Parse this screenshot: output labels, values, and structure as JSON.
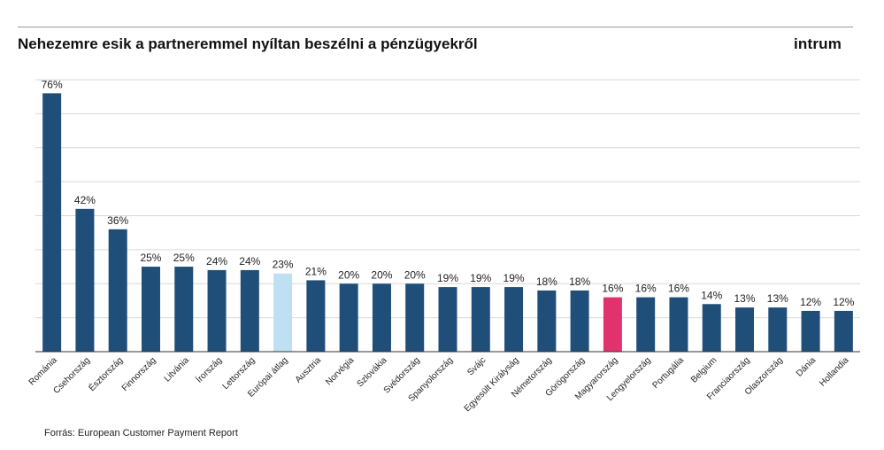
{
  "title": "Nehezemre esik a partneremmel nyíltan beszélni a pénzügyekről",
  "brand": "intrum",
  "source": "Forrás: European Customer Payment Report",
  "colors": {
    "bar": "#1f4e79",
    "average": "#bfe0f2",
    "highlight": "#e0336e",
    "grid": "#d9d9d9",
    "axis": "#333333"
  },
  "chart_data": {
    "type": "bar",
    "categories": [
      "Románia",
      "Csehország",
      "Észtország",
      "Finnország",
      "Litvánia",
      "Írország",
      "Lettország",
      "Európai átlag",
      "Ausztria",
      "Norvégia",
      "Szlovákia",
      "Svédország",
      "Spanyolország",
      "Svájc",
      "Egyesült Királyság",
      "Németország",
      "Görögország",
      "Magyarország",
      "Lengyelország",
      "Portugália",
      "Belgium",
      "Franciaország",
      "Olaszország",
      "Dánia",
      "Hollandia"
    ],
    "values": [
      76,
      42,
      36,
      25,
      25,
      24,
      24,
      23,
      21,
      20,
      20,
      20,
      19,
      19,
      19,
      18,
      18,
      16,
      16,
      16,
      14,
      13,
      13,
      12,
      12
    ],
    "value_labels": [
      "76%",
      "42%",
      "36%",
      "25%",
      "25%",
      "24%",
      "24%",
      "23%",
      "21%",
      "20%",
      "20%",
      "20%",
      "19%",
      "19%",
      "19%",
      "18%",
      "18%",
      "16%",
      "16%",
      "16%",
      "14%",
      "13%",
      "13%",
      "12%",
      "12%"
    ],
    "average_category": "Európai átlag",
    "highlight_category": "Magyarország",
    "ylim": [
      0,
      80
    ],
    "grid": true,
    "title": "Nehezemre esik a partneremmel nyíltan beszélni a pénzügyekről",
    "xlabel": "",
    "ylabel": ""
  }
}
